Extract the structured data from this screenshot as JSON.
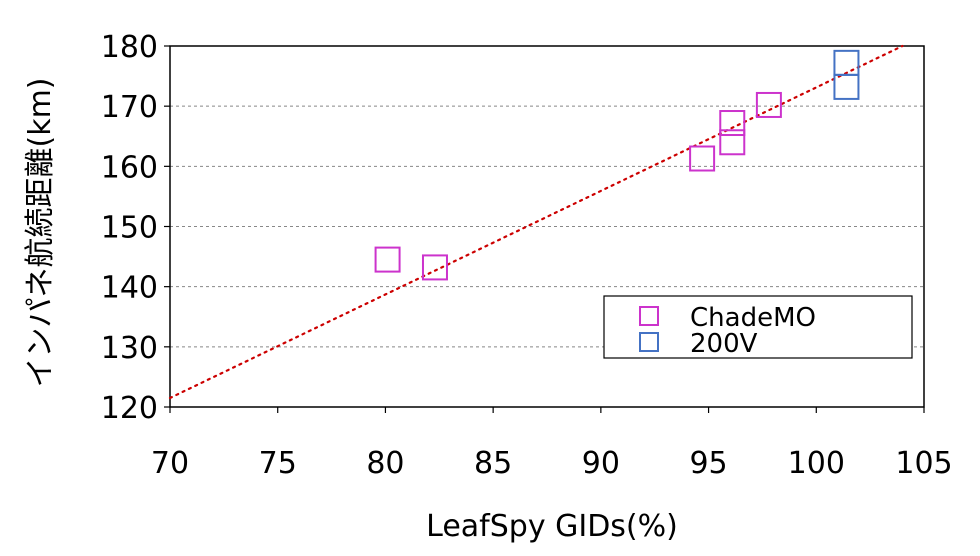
{
  "chart_data": {
    "type": "scatter",
    "xlabel": "LeafSpy GIDs(%)",
    "ylabel": "インパネ航続距離(km)",
    "xlim": [
      70,
      105
    ],
    "ylim": [
      120,
      180
    ],
    "x_ticks": [
      "70",
      "75",
      "80",
      "85",
      "90",
      "95",
      "100",
      "105"
    ],
    "y_ticks": [
      "120",
      "130",
      "140",
      "150",
      "160",
      "170",
      "180"
    ],
    "grid": "horizontal dashed",
    "legend_position": "bottom-right",
    "series": [
      {
        "name": "ChadeMO",
        "color": "#cc33cc",
        "marker": "open-square",
        "points": [
          {
            "x": 80.1,
            "y": 144.5
          },
          {
            "x": 82.3,
            "y": 143.2
          },
          {
            "x": 94.7,
            "y": 161.3
          },
          {
            "x": 96.1,
            "y": 167.2
          },
          {
            "x": 96.1,
            "y": 164.0
          },
          {
            "x": 97.8,
            "y": 170.2
          }
        ]
      },
      {
        "name": "200V",
        "color": "#4472c4",
        "marker": "open-square",
        "points": [
          {
            "x": 101.4,
            "y": 177.2
          },
          {
            "x": 101.4,
            "y": 173.2
          }
        ]
      }
    ],
    "trendline": {
      "type": "linear",
      "color": "#cc0000",
      "style": "dotted",
      "points": [
        {
          "x": 70,
          "y": 121.5
        },
        {
          "x": 104,
          "y": 180
        }
      ]
    }
  }
}
